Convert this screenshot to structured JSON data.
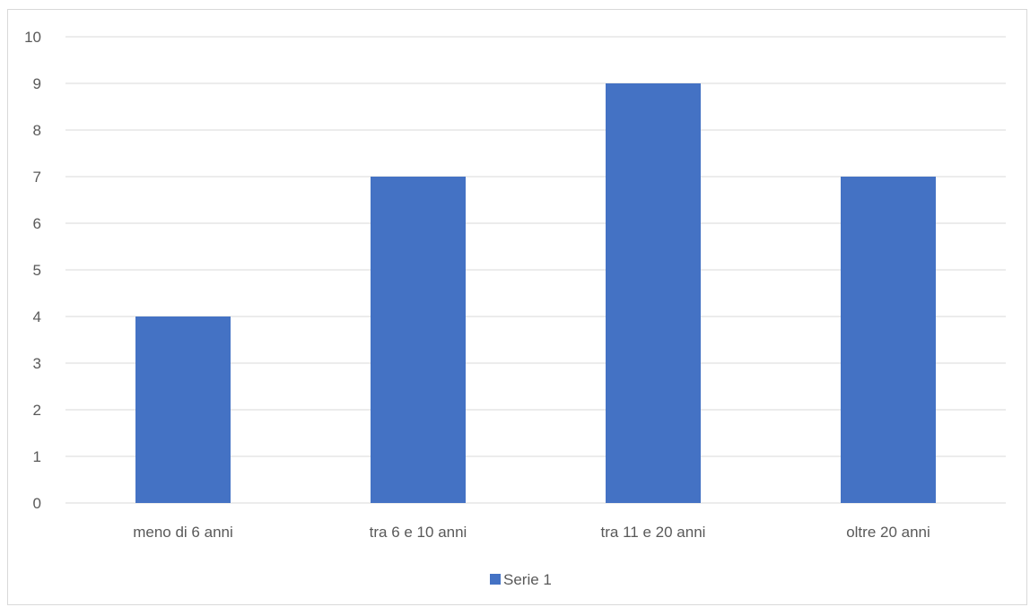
{
  "chart_data": {
    "type": "bar",
    "categories": [
      "meno di 6 anni",
      "tra 6 e 10 anni",
      "tra 11 e 20 anni",
      "oltre 20 anni"
    ],
    "series": [
      {
        "name": "Serie 1",
        "values": [
          4,
          7,
          9,
          7
        ],
        "color": "#4472c4"
      }
    ],
    "ylim": [
      0,
      10
    ],
    "yticks": [
      "0",
      "1",
      "2",
      "3",
      "4",
      "5",
      "6",
      "7",
      "8",
      "9",
      "10"
    ],
    "grid": true,
    "gridColor": "#d9d9d9",
    "legend": "bottom",
    "title": "",
    "xlabel": "",
    "ylabel": ""
  }
}
